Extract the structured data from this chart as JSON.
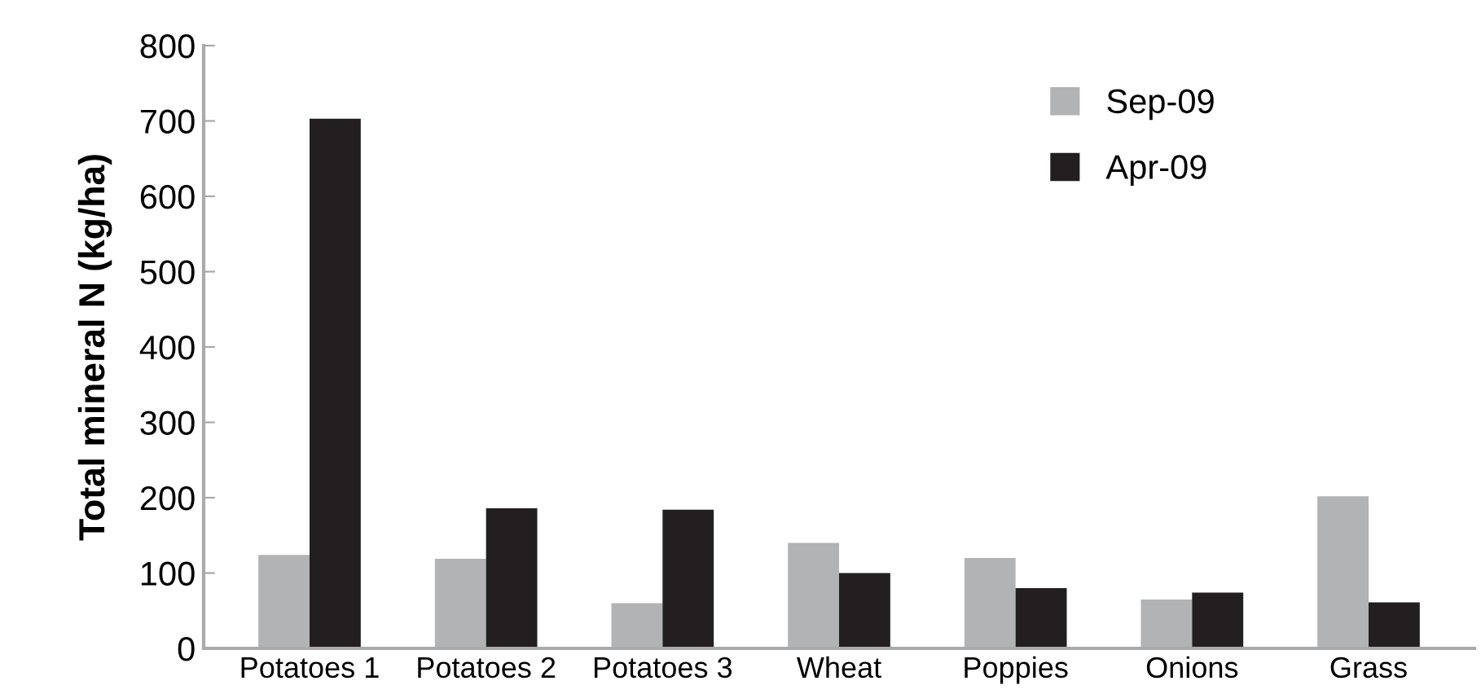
{
  "chart_data": {
    "type": "bar",
    "categories": [
      "Potatoes 1",
      "Potatoes 2",
      "Potatoes 3",
      "Wheat",
      "Poppies",
      "Onions",
      "Grass"
    ],
    "series": [
      {
        "name": "Sep-09",
        "color": "#b2b3b5",
        "values": [
          124,
          119,
          60,
          140,
          120,
          65,
          202
        ]
      },
      {
        "name": "Apr-09",
        "color": "#231f20",
        "values": [
          703,
          186,
          184,
          100,
          80,
          74,
          61
        ]
      }
    ],
    "ylabel": "Total mineral N (kg/ha)",
    "ylim": [
      0,
      800
    ],
    "yticks": [
      0,
      100,
      200,
      300,
      400,
      500,
      600,
      700,
      800
    ],
    "grid": false,
    "legend": "top right"
  }
}
